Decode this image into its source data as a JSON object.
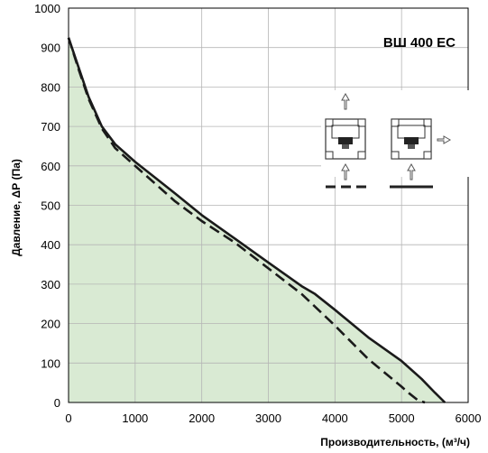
{
  "chart_data": {
    "type": "area",
    "title": "ВШ 400 ЕС",
    "xlabel": "Производительность, (м³/ч)",
    "ylabel": "Давление, ΔР (Па)",
    "xlim": [
      0,
      6000
    ],
    "ylim": [
      0,
      1000
    ],
    "xticks": [
      0,
      1000,
      2000,
      3000,
      4000,
      5000,
      6000
    ],
    "yticks": [
      0,
      100,
      200,
      300,
      400,
      500,
      600,
      700,
      800,
      900,
      1000
    ],
    "grid": true,
    "fill_color": "#d9ead3",
    "series": [
      {
        "style": "solid",
        "color": "#1a1a1a",
        "x": [
          0,
          150,
          300,
          500,
          700,
          1000,
          1300,
          1600,
          2000,
          2500,
          3000,
          3500,
          3700,
          4000,
          4500,
          5000,
          5300,
          5500,
          5650
        ],
        "y": [
          925,
          850,
          775,
          700,
          655,
          610,
          570,
          530,
          475,
          415,
          355,
          295,
          275,
          235,
          165,
          105,
          60,
          25,
          0
        ]
      },
      {
        "style": "dashed",
        "color": "#1a1a1a",
        "x": [
          0,
          150,
          300,
          500,
          700,
          1000,
          1300,
          1600,
          2000,
          2500,
          3000,
          3500,
          4000,
          4500,
          5000,
          5100,
          5250,
          5350
        ],
        "y": [
          925,
          845,
          770,
          695,
          645,
          600,
          555,
          510,
          460,
          405,
          340,
          275,
          195,
          110,
          40,
          25,
          5,
          0
        ]
      }
    ]
  }
}
